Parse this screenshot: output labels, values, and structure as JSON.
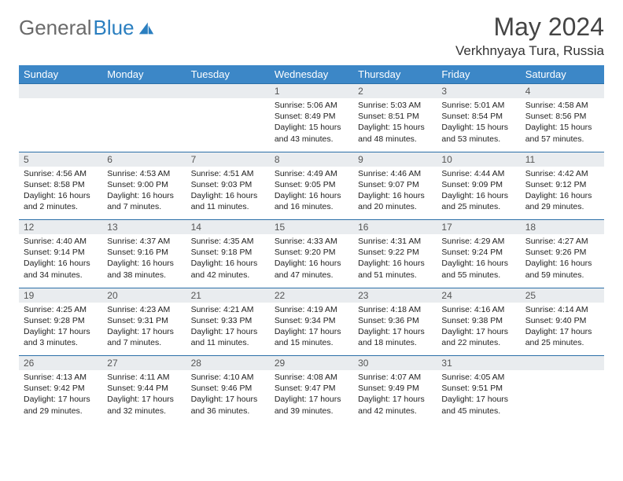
{
  "brand": {
    "part1": "General",
    "part2": "Blue"
  },
  "title": "May 2024",
  "location": "Verkhnyaya Tura, Russia",
  "colors": {
    "header_bg": "#3c87c7",
    "header_text": "#ffffff",
    "daynum_bg": "#e9ecef",
    "border": "#2b6fa8",
    "brand_gray": "#6a6a6a",
    "brand_blue": "#2b7fc0"
  },
  "weekdays": [
    "Sunday",
    "Monday",
    "Tuesday",
    "Wednesday",
    "Thursday",
    "Friday",
    "Saturday"
  ],
  "weeks": [
    [
      {
        "day": "",
        "lines": []
      },
      {
        "day": "",
        "lines": []
      },
      {
        "day": "",
        "lines": []
      },
      {
        "day": "1",
        "lines": [
          "Sunrise: 5:06 AM",
          "Sunset: 8:49 PM",
          "Daylight: 15 hours",
          "and 43 minutes."
        ]
      },
      {
        "day": "2",
        "lines": [
          "Sunrise: 5:03 AM",
          "Sunset: 8:51 PM",
          "Daylight: 15 hours",
          "and 48 minutes."
        ]
      },
      {
        "day": "3",
        "lines": [
          "Sunrise: 5:01 AM",
          "Sunset: 8:54 PM",
          "Daylight: 15 hours",
          "and 53 minutes."
        ]
      },
      {
        "day": "4",
        "lines": [
          "Sunrise: 4:58 AM",
          "Sunset: 8:56 PM",
          "Daylight: 15 hours",
          "and 57 minutes."
        ]
      }
    ],
    [
      {
        "day": "5",
        "lines": [
          "Sunrise: 4:56 AM",
          "Sunset: 8:58 PM",
          "Daylight: 16 hours",
          "and 2 minutes."
        ]
      },
      {
        "day": "6",
        "lines": [
          "Sunrise: 4:53 AM",
          "Sunset: 9:00 PM",
          "Daylight: 16 hours",
          "and 7 minutes."
        ]
      },
      {
        "day": "7",
        "lines": [
          "Sunrise: 4:51 AM",
          "Sunset: 9:03 PM",
          "Daylight: 16 hours",
          "and 11 minutes."
        ]
      },
      {
        "day": "8",
        "lines": [
          "Sunrise: 4:49 AM",
          "Sunset: 9:05 PM",
          "Daylight: 16 hours",
          "and 16 minutes."
        ]
      },
      {
        "day": "9",
        "lines": [
          "Sunrise: 4:46 AM",
          "Sunset: 9:07 PM",
          "Daylight: 16 hours",
          "and 20 minutes."
        ]
      },
      {
        "day": "10",
        "lines": [
          "Sunrise: 4:44 AM",
          "Sunset: 9:09 PM",
          "Daylight: 16 hours",
          "and 25 minutes."
        ]
      },
      {
        "day": "11",
        "lines": [
          "Sunrise: 4:42 AM",
          "Sunset: 9:12 PM",
          "Daylight: 16 hours",
          "and 29 minutes."
        ]
      }
    ],
    [
      {
        "day": "12",
        "lines": [
          "Sunrise: 4:40 AM",
          "Sunset: 9:14 PM",
          "Daylight: 16 hours",
          "and 34 minutes."
        ]
      },
      {
        "day": "13",
        "lines": [
          "Sunrise: 4:37 AM",
          "Sunset: 9:16 PM",
          "Daylight: 16 hours",
          "and 38 minutes."
        ]
      },
      {
        "day": "14",
        "lines": [
          "Sunrise: 4:35 AM",
          "Sunset: 9:18 PM",
          "Daylight: 16 hours",
          "and 42 minutes."
        ]
      },
      {
        "day": "15",
        "lines": [
          "Sunrise: 4:33 AM",
          "Sunset: 9:20 PM",
          "Daylight: 16 hours",
          "and 47 minutes."
        ]
      },
      {
        "day": "16",
        "lines": [
          "Sunrise: 4:31 AM",
          "Sunset: 9:22 PM",
          "Daylight: 16 hours",
          "and 51 minutes."
        ]
      },
      {
        "day": "17",
        "lines": [
          "Sunrise: 4:29 AM",
          "Sunset: 9:24 PM",
          "Daylight: 16 hours",
          "and 55 minutes."
        ]
      },
      {
        "day": "18",
        "lines": [
          "Sunrise: 4:27 AM",
          "Sunset: 9:26 PM",
          "Daylight: 16 hours",
          "and 59 minutes."
        ]
      }
    ],
    [
      {
        "day": "19",
        "lines": [
          "Sunrise: 4:25 AM",
          "Sunset: 9:28 PM",
          "Daylight: 17 hours",
          "and 3 minutes."
        ]
      },
      {
        "day": "20",
        "lines": [
          "Sunrise: 4:23 AM",
          "Sunset: 9:31 PM",
          "Daylight: 17 hours",
          "and 7 minutes."
        ]
      },
      {
        "day": "21",
        "lines": [
          "Sunrise: 4:21 AM",
          "Sunset: 9:33 PM",
          "Daylight: 17 hours",
          "and 11 minutes."
        ]
      },
      {
        "day": "22",
        "lines": [
          "Sunrise: 4:19 AM",
          "Sunset: 9:34 PM",
          "Daylight: 17 hours",
          "and 15 minutes."
        ]
      },
      {
        "day": "23",
        "lines": [
          "Sunrise: 4:18 AM",
          "Sunset: 9:36 PM",
          "Daylight: 17 hours",
          "and 18 minutes."
        ]
      },
      {
        "day": "24",
        "lines": [
          "Sunrise: 4:16 AM",
          "Sunset: 9:38 PM",
          "Daylight: 17 hours",
          "and 22 minutes."
        ]
      },
      {
        "day": "25",
        "lines": [
          "Sunrise: 4:14 AM",
          "Sunset: 9:40 PM",
          "Daylight: 17 hours",
          "and 25 minutes."
        ]
      }
    ],
    [
      {
        "day": "26",
        "lines": [
          "Sunrise: 4:13 AM",
          "Sunset: 9:42 PM",
          "Daylight: 17 hours",
          "and 29 minutes."
        ]
      },
      {
        "day": "27",
        "lines": [
          "Sunrise: 4:11 AM",
          "Sunset: 9:44 PM",
          "Daylight: 17 hours",
          "and 32 minutes."
        ]
      },
      {
        "day": "28",
        "lines": [
          "Sunrise: 4:10 AM",
          "Sunset: 9:46 PM",
          "Daylight: 17 hours",
          "and 36 minutes."
        ]
      },
      {
        "day": "29",
        "lines": [
          "Sunrise: 4:08 AM",
          "Sunset: 9:47 PM",
          "Daylight: 17 hours",
          "and 39 minutes."
        ]
      },
      {
        "day": "30",
        "lines": [
          "Sunrise: 4:07 AM",
          "Sunset: 9:49 PM",
          "Daylight: 17 hours",
          "and 42 minutes."
        ]
      },
      {
        "day": "31",
        "lines": [
          "Sunrise: 4:05 AM",
          "Sunset: 9:51 PM",
          "Daylight: 17 hours",
          "and 45 minutes."
        ]
      },
      {
        "day": "",
        "lines": []
      }
    ]
  ]
}
